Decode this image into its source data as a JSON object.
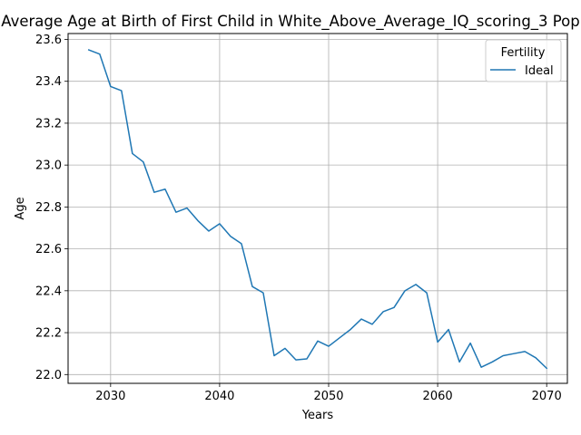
{
  "chart_data": {
    "type": "line",
    "title": "Average Age at Birth of First Child in White_Above_Average_IQ_scoring_3 Pop",
    "xlabel": "Years",
    "ylabel": "Age",
    "xlim": [
      2026.1,
      2071.9
    ],
    "ylim": [
      21.958,
      23.628
    ],
    "xticks": [
      2030,
      2040,
      2050,
      2060,
      2070
    ],
    "yticks": [
      22.0,
      22.2,
      22.4,
      22.6,
      22.8,
      23.0,
      23.2,
      23.4,
      23.6
    ],
    "ytick_labels": [
      "22.0",
      "22.2",
      "22.4",
      "22.6",
      "22.8",
      "23.0",
      "23.2",
      "23.4",
      "23.6"
    ],
    "grid": true,
    "legend": {
      "title": "Fertility",
      "placement": "top-right"
    },
    "series": [
      {
        "name": "Ideal",
        "color": "#1f77b4",
        "x": [
          2028,
          2029,
          2030,
          2031,
          2032,
          2033,
          2034,
          2035,
          2036,
          2037,
          2038,
          2039,
          2040,
          2041,
          2042,
          2043,
          2044,
          2045,
          2046,
          2047,
          2048,
          2049,
          2050,
          2051,
          2052,
          2053,
          2054,
          2055,
          2056,
          2057,
          2058,
          2059,
          2060,
          2061,
          2062,
          2063,
          2064,
          2065,
          2066,
          2067,
          2068,
          2069,
          2070
        ],
        "y": [
          23.55,
          23.53,
          23.375,
          23.355,
          23.055,
          23.015,
          22.87,
          22.885,
          22.775,
          22.795,
          22.735,
          22.685,
          22.72,
          22.66,
          22.625,
          22.42,
          22.39,
          22.09,
          22.125,
          22.07,
          22.075,
          22.16,
          22.135,
          22.175,
          22.215,
          22.265,
          22.24,
          22.3,
          22.32,
          22.4,
          22.43,
          22.39,
          22.155,
          22.215,
          22.06,
          22.15,
          22.035,
          22.06,
          22.09,
          22.1,
          22.11,
          22.08,
          22.03
        ]
      }
    ]
  }
}
